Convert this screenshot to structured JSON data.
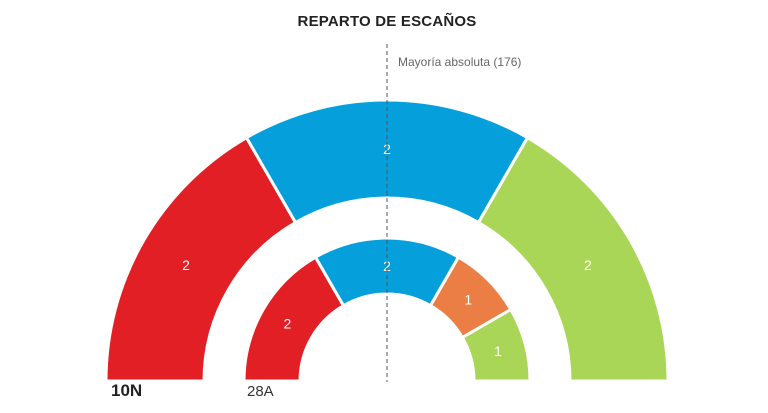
{
  "chart_data": {
    "type": "pie",
    "title": "REPARTO DE ESCAÑOS",
    "majority_label": "Mayoría absoluta (176)",
    "rings": [
      {
        "name": "10N",
        "values": [
          2,
          2,
          2
        ],
        "colors": [
          "#e11f25",
          "#05a0dc",
          "#a9d657"
        ]
      },
      {
        "name": "28A",
        "values": [
          2,
          2,
          1,
          1
        ],
        "colors": [
          "#e11f25",
          "#05a0dc",
          "#ea7e45",
          "#a9d657"
        ]
      }
    ]
  }
}
